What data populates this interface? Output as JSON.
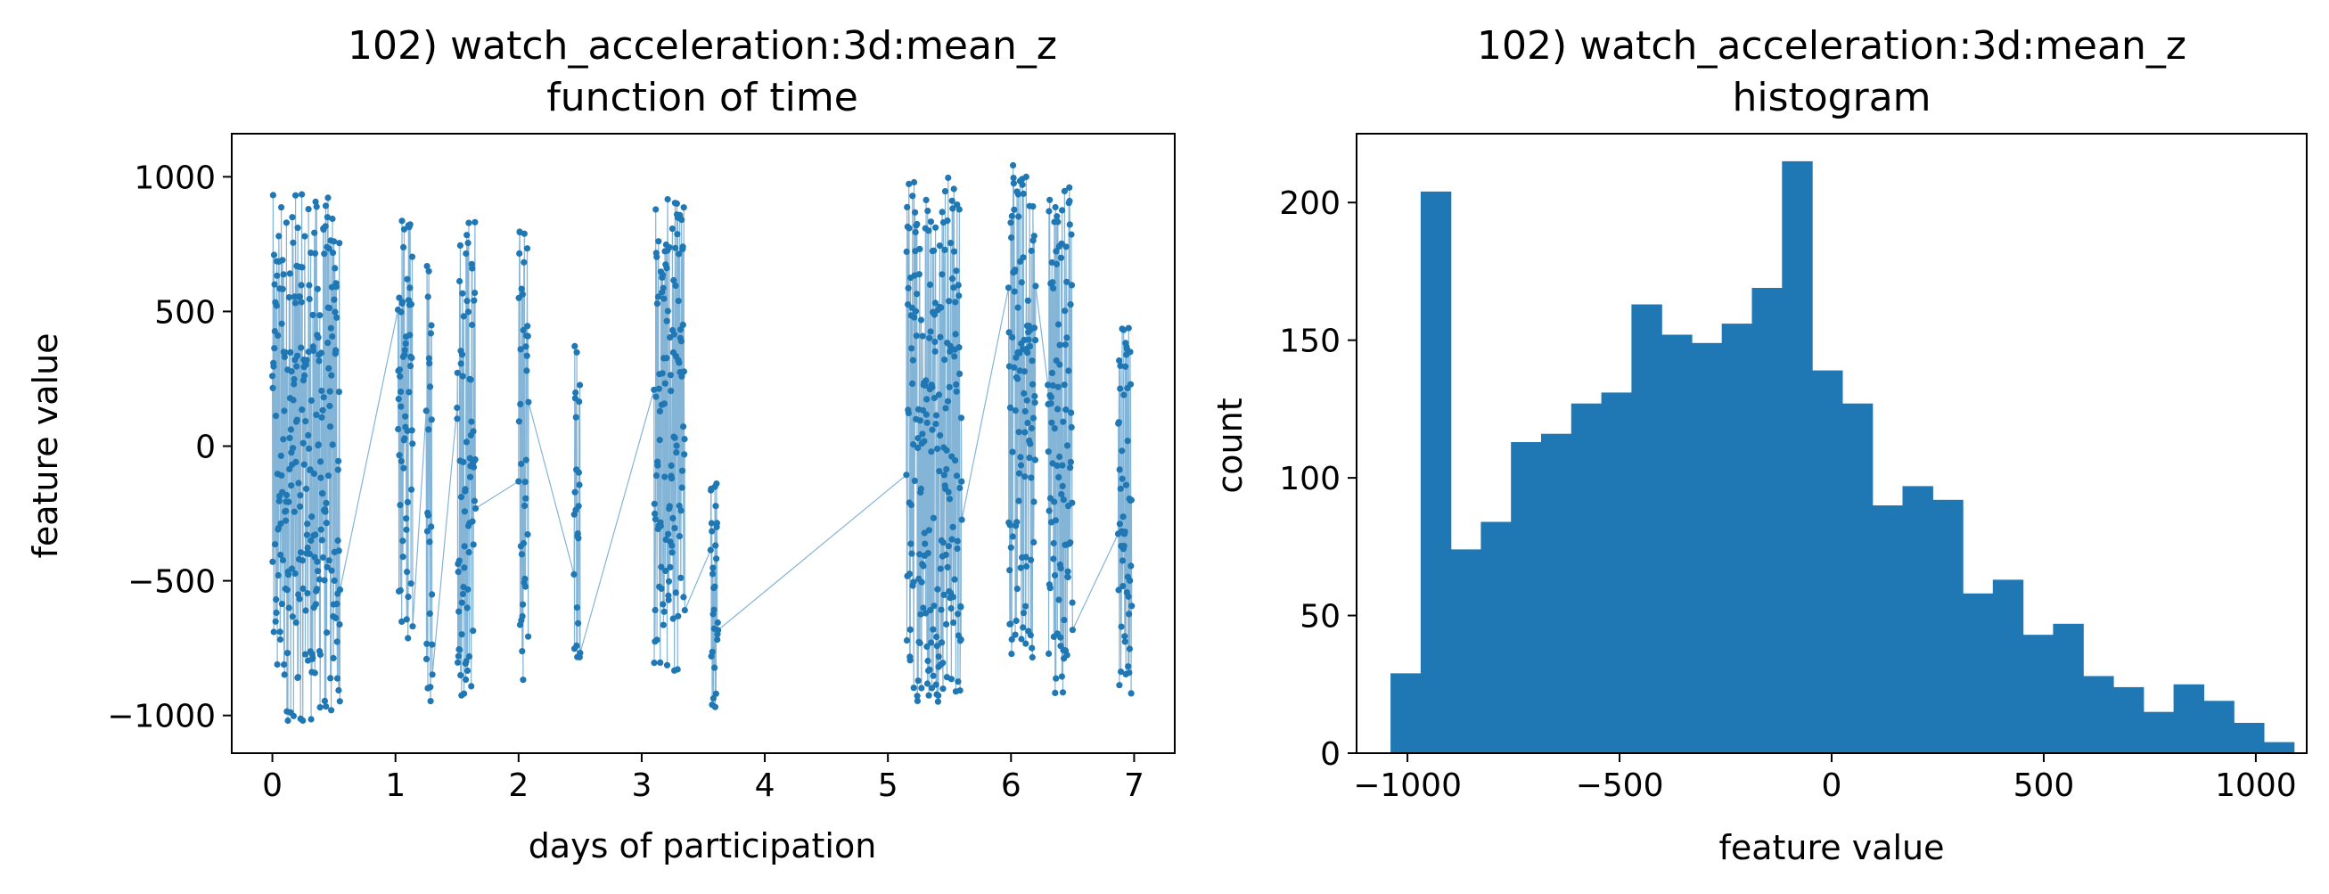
{
  "chart_data": [
    {
      "type": "scatter",
      "title_line1": "102) watch_acceleration:3d:mean_z",
      "title_line2": "function of time",
      "xlabel": "days of participation",
      "ylabel": "feature value",
      "xlim": [
        -0.33,
        7.33
      ],
      "ylim": [
        -1140,
        1160
      ],
      "xticks": [
        0,
        1,
        2,
        3,
        4,
        5,
        6,
        7
      ],
      "yticks": [
        1000,
        500,
        0,
        -500,
        -1000
      ],
      "ytick_labels": [
        "1000",
        "500",
        "0",
        "−500",
        "−1000"
      ],
      "color": "#1f77b4",
      "connected": true,
      "clusters": [
        {
          "x": [
            0.0,
            0.55
          ],
          "y": [
            -1030,
            940
          ]
        },
        {
          "x": [
            1.02,
            1.14
          ],
          "y": [
            -720,
            850
          ]
        },
        {
          "x": [
            1.25,
            1.3
          ],
          "y": [
            -990,
            680
          ]
        },
        {
          "x": [
            1.5,
            1.65
          ],
          "y": [
            -950,
            900
          ]
        },
        {
          "x": [
            2.0,
            2.08
          ],
          "y": [
            -880,
            860
          ]
        },
        {
          "x": [
            2.45,
            2.5
          ],
          "y": [
            -790,
            420
          ]
        },
        {
          "x": [
            3.1,
            3.35
          ],
          "y": [
            -850,
            920
          ]
        },
        {
          "x": [
            3.56,
            3.62
          ],
          "y": [
            -1020,
            -80
          ]
        },
        {
          "x": [
            5.15,
            5.6
          ],
          "y": [
            -950,
            1040
          ]
        },
        {
          "x": [
            5.98,
            6.2
          ],
          "y": [
            -800,
            1050
          ]
        },
        {
          "x": [
            6.3,
            6.5
          ],
          "y": [
            -920,
            1020
          ]
        },
        {
          "x": [
            6.87,
            6.98
          ],
          "y": [
            -960,
            490
          ]
        }
      ]
    },
    {
      "type": "bar",
      "title_line1": "102) watch_acceleration:3d:mean_z",
      "title_line2": "histogram",
      "xlabel": "feature value",
      "ylabel": "count",
      "xlim": [
        -1120,
        1120
      ],
      "ylim": [
        0,
        225
      ],
      "xticks": [
        -1000,
        -500,
        0,
        500,
        1000
      ],
      "xtick_labels": [
        "−1000",
        "−500",
        "0",
        "500",
        "1000"
      ],
      "yticks": [
        0,
        50,
        100,
        150,
        200
      ],
      "color": "#1f77b4",
      "bin_edges": [
        -1040,
        -969,
        -898,
        -827,
        -756,
        -685,
        -614,
        -543,
        -472,
        -401,
        -330,
        -259,
        -188,
        -117,
        -46,
        25,
        96,
        167,
        238,
        309,
        380,
        451,
        522,
        593,
        664,
        735,
        806,
        877,
        948,
        1019,
        1090
      ],
      "counts": [
        29,
        204,
        74,
        84,
        113,
        116,
        127,
        131,
        163,
        152,
        149,
        156,
        169,
        215,
        139,
        127,
        90,
        97,
        92,
        58,
        63,
        43,
        47,
        28,
        24,
        15,
        25,
        19,
        11,
        4
      ]
    }
  ]
}
